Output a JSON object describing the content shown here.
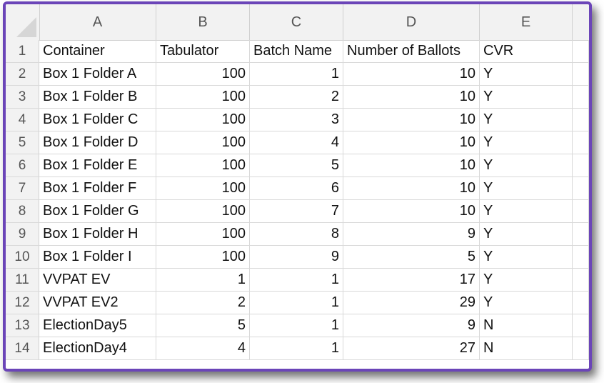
{
  "columns": [
    "A",
    "B",
    "C",
    "D",
    "E"
  ],
  "rows": [
    {
      "num": "1",
      "a": "Container",
      "b": "Tabulator",
      "c": "Batch Name",
      "d": "Number of Ballots",
      "e": "CVR"
    },
    {
      "num": "2",
      "a": "Box 1 Folder A",
      "b": "100",
      "c": "1",
      "d": "10",
      "e": "Y"
    },
    {
      "num": "3",
      "a": "Box 1 Folder B",
      "b": "100",
      "c": "2",
      "d": "10",
      "e": "Y"
    },
    {
      "num": "4",
      "a": "Box 1 Folder C",
      "b": "100",
      "c": "3",
      "d": "10",
      "e": "Y"
    },
    {
      "num": "5",
      "a": "Box 1 Folder D",
      "b": "100",
      "c": "4",
      "d": "10",
      "e": "Y"
    },
    {
      "num": "6",
      "a": "Box 1 Folder E",
      "b": "100",
      "c": "5",
      "d": "10",
      "e": "Y"
    },
    {
      "num": "7",
      "a": "Box 1 Folder F",
      "b": "100",
      "c": "6",
      "d": "10",
      "e": "Y"
    },
    {
      "num": "8",
      "a": "Box 1 Folder G",
      "b": "100",
      "c": "7",
      "d": "10",
      "e": "Y"
    },
    {
      "num": "9",
      "a": "Box 1 Folder H",
      "b": "100",
      "c": "8",
      "d": "9",
      "e": "Y"
    },
    {
      "num": "10",
      "a": "Box 1 Folder I",
      "b": "100",
      "c": "9",
      "d": "5",
      "e": "Y"
    },
    {
      "num": "11",
      "a": "VVPAT EV",
      "b": "1",
      "c": "1",
      "d": "17",
      "e": "Y"
    },
    {
      "num": "12",
      "a": "VVPAT EV2",
      "b": "2",
      "c": "1",
      "d": "29",
      "e": "Y"
    },
    {
      "num": "13",
      "a": "ElectionDay5",
      "b": "5",
      "c": "1",
      "d": "9",
      "e": "N"
    },
    {
      "num": "14",
      "a": "ElectionDay4",
      "b": "4",
      "c": "1",
      "d": "27",
      "e": "N"
    }
  ],
  "colors": {
    "frame": "#6b45b8",
    "header_bg": "#f2f2f2",
    "grid": "#d9d9d9"
  }
}
